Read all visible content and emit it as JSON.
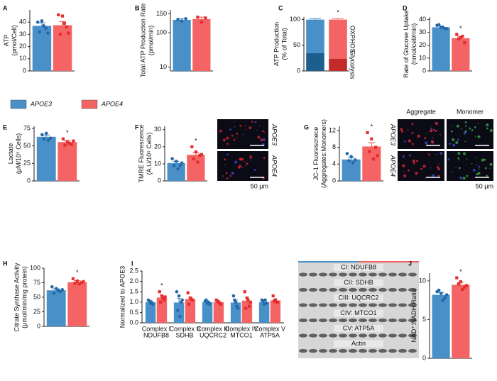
{
  "legend": [
    {
      "name": "APOE3",
      "color": "#4a90c8"
    },
    {
      "name": "APOE4",
      "color": "#f46464"
    }
  ],
  "chart_data": [
    {
      "panel": "A",
      "type": "bar",
      "ylabel": [
        "ATP",
        "(pmol/Cell)"
      ],
      "ylim": [
        0,
        50
      ],
      "yticks": [
        0,
        10,
        20,
        30,
        40
      ],
      "series": [
        {
          "name": "APOE3",
          "color": "#4a90c8",
          "point_color": "#2368a8",
          "values": [
            37
          ],
          "errors": [
            2.5
          ],
          "points": [
            [
              40,
              41,
              35,
              32,
              37,
              31
            ]
          ]
        },
        {
          "name": "APOE4",
          "color": "#f46464",
          "point_color": "#e52d2d",
          "values": [
            37.5
          ],
          "errors": [
            3
          ],
          "points": [
            [
              46,
              45,
              36,
              30,
              39,
              31
            ]
          ]
        }
      ]
    },
    {
      "panel": "B",
      "type": "bar",
      "ylabel": [
        "Total ATP Production Rate",
        "(pmol/min)"
      ],
      "ylim": [
        0,
        160
      ],
      "yticks": [
        10,
        100,
        150
      ],
      "series": [
        {
          "name": "APOE3",
          "color": "#4a90c8",
          "point_color": "#2368a8",
          "values": [
            134
          ],
          "errors": [
            3
          ],
          "points": [
            [
              135,
              131,
              137
            ]
          ]
        },
        {
          "name": "APOE4",
          "color": "#f46464",
          "point_color": "#e52d2d",
          "values": [
            136
          ],
          "errors": [
            5
          ],
          "points": [
            [
              141,
              128,
              139
            ]
          ]
        }
      ]
    },
    {
      "panel": "C",
      "type": "stacked_bar",
      "ylabel": [
        "ATP Production",
        "(% of Total)"
      ],
      "ylim": [
        0,
        105
      ],
      "yticks": [
        0,
        50,
        100
      ],
      "annotation": "*",
      "series": [
        {
          "name": "Glycolysis",
          "colors": [
            "#1d5e8e",
            "#c42a2a"
          ],
          "values": [
            35,
            24
          ],
          "errors": [
            3,
            2
          ]
        },
        {
          "name": "OXPHOS",
          "colors": [
            "#4a90c8",
            "#f46464"
          ],
          "values": [
            65,
            76
          ],
          "errors": [
            2,
            2
          ]
        }
      ]
    },
    {
      "panel": "D",
      "type": "bar",
      "ylabel": [
        "Rate of Glucose Uptake",
        "(nmol/cell/min)"
      ],
      "ylim": [
        0,
        42
      ],
      "yticks": [
        0,
        10,
        20,
        30,
        40
      ],
      "annotation": "*",
      "series": [
        {
          "name": "APOE3",
          "color": "#4a90c8",
          "point_color": "#2368a8",
          "values": [
            34
          ],
          "errors": [
            1
          ],
          "points": [
            [
              35.5,
              34,
              33,
              36,
              34,
              33
            ]
          ]
        },
        {
          "name": "APOE4",
          "color": "#f46464",
          "point_color": "#e52d2d",
          "values": [
            25.5
          ],
          "errors": [
            1.5
          ],
          "points": [
            [
              28.5,
              26,
              22,
              25,
              27
            ]
          ]
        }
      ]
    },
    {
      "panel": "E",
      "type": "bar",
      "ylabel": [
        "Lactate",
        "(μM/10⁵ Cells)"
      ],
      "ylim": [
        0,
        78
      ],
      "yticks": [
        0,
        25,
        50,
        75
      ],
      "annotation": "*",
      "series": [
        {
          "name": "APOE3",
          "color": "#4a90c8",
          "point_color": "#2368a8",
          "values": [
            63
          ],
          "errors": [
            2.5
          ],
          "points": [
            [
              66,
              68,
              61,
              60,
              58
            ]
          ]
        },
        {
          "name": "APOE4",
          "color": "#f46464",
          "point_color": "#e52d2d",
          "values": [
            55.5
          ],
          "errors": [
            2
          ],
          "points": [
            [
              60,
              56,
              52,
              51,
              54,
              57
            ]
          ]
        }
      ]
    },
    {
      "panel": "F",
      "type": "bar",
      "ylabel": [
        "TMRE Fluorescence",
        "(A.U/10⁵ Cells)"
      ],
      "ylim": [
        0,
        32
      ],
      "yticks": [
        0,
        10,
        20,
        30
      ],
      "annotation": "*",
      "image_labels": [
        "APOE3",
        "APOE4",
        "50 μm"
      ],
      "series": [
        {
          "name": "APOE3",
          "color": "#4a90c8",
          "point_color": "#2368a8",
          "values": [
            10.5
          ],
          "errors": [
            1
          ],
          "points": [
            [
              13,
              11.5,
              9,
              9,
              7,
              10.5
            ]
          ]
        },
        {
          "name": "APOE4",
          "color": "#f46464",
          "point_color": "#e52d2d",
          "values": [
            15.3
          ],
          "errors": [
            1.5
          ],
          "points": [
            [
              20,
              17,
              15,
              13,
              11,
              15.5
            ]
          ]
        }
      ]
    },
    {
      "panel": "G",
      "type": "bar",
      "ylabel": [
        "JC-1 Fluorescnece",
        "(Aggregates:Monomers)"
      ],
      "ylim": [
        0,
        13
      ],
      "yticks": [
        0,
        4,
        8,
        12
      ],
      "annotation": "*",
      "image_labels": [
        "Aggregate",
        "Monomer",
        "APOE3",
        "APOE4",
        "50 μm"
      ],
      "series": [
        {
          "name": "APOE3",
          "color": "#4a90c8",
          "point_color": "#2368a8",
          "values": [
            5.1
          ],
          "errors": [
            0.4
          ],
          "points": [
            [
              6.5,
              5.8,
              5,
              4.8,
              4.3
            ]
          ]
        },
        {
          "name": "APOE4",
          "color": "#f46464",
          "point_color": "#e52d2d",
          "values": [
            8.2
          ],
          "errors": [
            0.9
          ],
          "points": [
            [
              11.5,
              10,
              8,
              7,
              5.2,
              6
            ]
          ]
        }
      ]
    },
    {
      "panel": "H",
      "type": "bar",
      "ylabel": [
        "Citrate Synthase Activity",
        "(μmol/min/mg protein)"
      ],
      "ylim": [
        0,
        100
      ],
      "yticks": [
        0,
        25,
        50,
        75,
        100
      ],
      "annotation": "*",
      "series": [
        {
          "name": "APOE3",
          "color": "#4a90c8",
          "point_color": "#2368a8",
          "values": [
            62
          ],
          "errors": [
            2.5
          ],
          "points": [
            [
              68,
              65,
              60,
              57,
              62,
              63
            ]
          ]
        },
        {
          "name": "APOE4",
          "color": "#f46464",
          "point_color": "#e52d2d",
          "values": [
            76
          ],
          "errors": [
            2.5
          ],
          "points": [
            [
              82,
              78,
              75,
              74,
              73,
              77
            ]
          ]
        }
      ]
    },
    {
      "panel": "I",
      "type": "bar",
      "ylabel": [
        "Normalized to APOE3"
      ],
      "ylim": [
        0,
        2.5
      ],
      "yticks": [
        {
          "value": 0,
          "label": "0.0"
        },
        {
          "value": 0.5,
          "label": "0.5"
        },
        {
          "value": 1,
          "label": "1.0"
        },
        {
          "value": 1.5,
          "label": "1.5"
        },
        {
          "value": 2,
          "label": "2.0"
        },
        {
          "value": 2.5,
          "label": "2.5"
        }
      ],
      "annotation": "*",
      "categories": [
        "Complex I",
        "Complex II",
        "Complex III",
        "Complex IV",
        "Complex V"
      ],
      "category_sublabels": [
        "NDUFB8",
        "SDHB",
        "UQCRC2",
        "MTCO1",
        "ATP5A"
      ],
      "blot_labels": [
        "CI: NDUFB8",
        "CII: SDHB",
        "CIII: UQCRC2",
        "CIV: MTCO1",
        "CV: ATP5A",
        "Actin"
      ],
      "series": [
        {
          "name": "APOE3",
          "color": "#4a90c8",
          "point_color": "#2368a8",
          "values": [
            1.0,
            0.98,
            1.0,
            0.98,
            1.0
          ],
          "errors": [
            0.08,
            0.2,
            0.05,
            0.12,
            0.07
          ],
          "points": [
            [
              1.1,
              0.95,
              0.9,
              1.05,
              0.98
            ],
            [
              1.5,
              1.3,
              1.0,
              0.6,
              0.3,
              1.1
            ],
            [
              1.05,
              0.95,
              0.9,
              1.1,
              1.0
            ],
            [
              1.3,
              1.0,
              0.7,
              1.1,
              0.8
            ],
            [
              1.1,
              0.9,
              0.95,
              1.05,
              1.1
            ]
          ]
        },
        {
          "name": "APOE4",
          "color": "#f46464",
          "point_color": "#e52d2d",
          "values": [
            1.22,
            1.15,
            1.0,
            1.07,
            1.08
          ],
          "errors": [
            0.1,
            0.1,
            0.06,
            0.15,
            0.08
          ],
          "points": [
            [
              1.5,
              1.3,
              1.1,
              1.0,
              1.2,
              1.25
            ],
            [
              1.45,
              1.2,
              1.1,
              0.9,
              1.15
            ],
            [
              1.1,
              1.0,
              0.9,
              1.05,
              0.95
            ],
            [
              1.5,
              1.2,
              0.8,
              0.7,
              1.1,
              1.0
            ],
            [
              1.3,
              1.1,
              1.0,
              1.05,
              1.0
            ]
          ]
        }
      ]
    },
    {
      "panel": "J",
      "type": "bar",
      "ylabel": [
        "NAD⁺:NADH Ratio"
      ],
      "ylim": [
        0,
        11
      ],
      "yticks": [
        0,
        5,
        10
      ],
      "annotation": "*",
      "series": [
        {
          "name": "APOE3",
          "color": "#4a90c8",
          "point_color": "#2368a8",
          "values": [
            8.2
          ],
          "errors": [
            0.3
          ],
          "points": [
            [
              8.6,
              8.4,
              7.8,
              8.8,
              7.5,
              8.2
            ]
          ]
        },
        {
          "name": "APOE4",
          "color": "#f46464",
          "point_color": "#e52d2d",
          "values": [
            9.5
          ],
          "errors": [
            0.3
          ],
          "points": [
            [
              10.4,
              9.9,
              9.2,
              9.6,
              8.9,
              9.4
            ]
          ]
        }
      ]
    }
  ]
}
